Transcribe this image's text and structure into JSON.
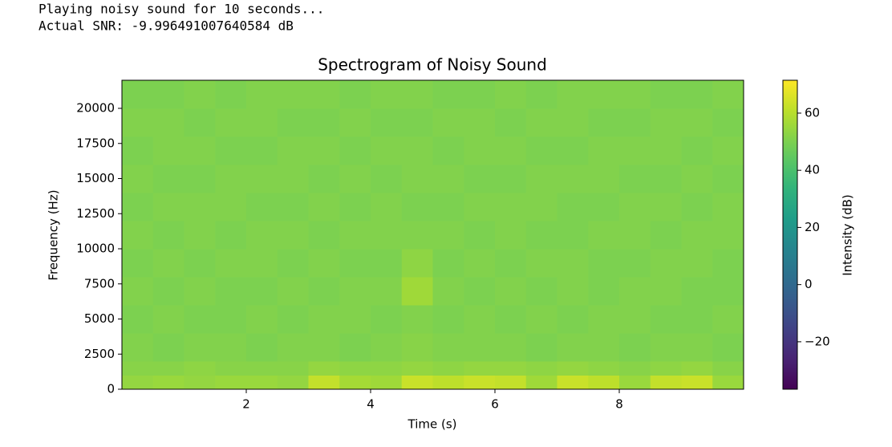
{
  "output": [
    "Playing noisy sound for 10 seconds...",
    "Actual SNR: -9.996491007640584 dB"
  ],
  "chart_data": {
    "type": "heatmap",
    "title": "Spectrogram of Noisy Sound",
    "x_label": "Time (s)",
    "y_label": "Frequency (Hz)",
    "x_edges": [
      0,
      0.5,
      1,
      1.5,
      2,
      2.5,
      3,
      3.5,
      4,
      4.5,
      5,
      5.5,
      6,
      6.5,
      7,
      7.5,
      8,
      8.5,
      9,
      9.5,
      10
    ],
    "y_edges": [
      0,
      1000,
      2000,
      4000,
      6000,
      8000,
      10000,
      12000,
      14000,
      16000,
      18000,
      20000,
      22000
    ],
    "z": [
      [
        54,
        55,
        54,
        55,
        55,
        54,
        62,
        57,
        56,
        63,
        61,
        63,
        62,
        56,
        63,
        61,
        55,
        62,
        63,
        55
      ],
      [
        52,
        52,
        53,
        52,
        52,
        52,
        54,
        53,
        53,
        54,
        53,
        54,
        54,
        53,
        54,
        53,
        52,
        53,
        54,
        52
      ],
      [
        51,
        50,
        51,
        51,
        50,
        51,
        51,
        50,
        51,
        52,
        51,
        51,
        51,
        50,
        51,
        51,
        50,
        51,
        51,
        50
      ],
      [
        50,
        51,
        50,
        50,
        51,
        50,
        51,
        51,
        50,
        51,
        50,
        51,
        50,
        51,
        50,
        51,
        51,
        50,
        50,
        51
      ],
      [
        51,
        50,
        51,
        50,
        50,
        51,
        50,
        51,
        51,
        56,
        51,
        50,
        51,
        50,
        51,
        50,
        51,
        51,
        50,
        50
      ],
      [
        50,
        51,
        50,
        51,
        51,
        50,
        51,
        50,
        50,
        53,
        50,
        51,
        50,
        51,
        51,
        50,
        50,
        51,
        51,
        50
      ],
      [
        51,
        50,
        51,
        50,
        51,
        51,
        50,
        51,
        51,
        51,
        51,
        50,
        51,
        50,
        50,
        51,
        51,
        50,
        51,
        51
      ],
      [
        50,
        51,
        51,
        51,
        50,
        50,
        51,
        50,
        51,
        50,
        50,
        51,
        51,
        51,
        50,
        50,
        51,
        51,
        50,
        51
      ],
      [
        51,
        50,
        50,
        51,
        51,
        51,
        50,
        51,
        50,
        51,
        51,
        50,
        50,
        51,
        51,
        51,
        50,
        50,
        51,
        50
      ],
      [
        50,
        51,
        51,
        50,
        50,
        51,
        51,
        50,
        51,
        51,
        50,
        51,
        51,
        50,
        50,
        51,
        51,
        51,
        50,
        51
      ],
      [
        51,
        51,
        50,
        51,
        51,
        50,
        50,
        51,
        50,
        50,
        51,
        51,
        50,
        51,
        51,
        50,
        50,
        51,
        51,
        50
      ],
      [
        50,
        50,
        51,
        50,
        51,
        51,
        51,
        50,
        51,
        51,
        50,
        50,
        51,
        50,
        51,
        51,
        51,
        50,
        50,
        51
      ]
    ],
    "xlim": [
      0,
      10
    ],
    "ylim": [
      0,
      22000
    ],
    "xticks": [
      2,
      4,
      6,
      8
    ],
    "yticks": [
      0,
      2500,
      5000,
      7500,
      10000,
      12500,
      15000,
      17500,
      20000
    ],
    "colormap": "viridis",
    "clim": [
      -36.6,
      71.5
    ],
    "colorbar_label": "Intensity (dB)",
    "colorbar_ticks": [
      {
        "value": -20,
        "label": "−20"
      },
      0,
      20,
      40,
      60
    ]
  }
}
